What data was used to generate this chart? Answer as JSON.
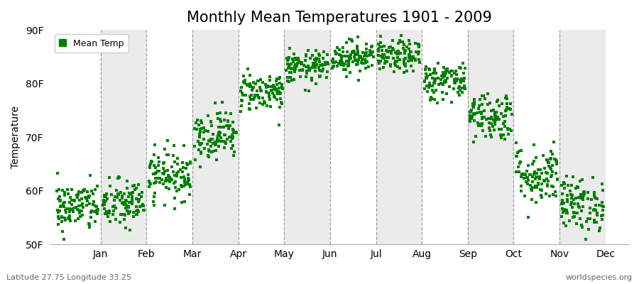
{
  "title": "Monthly Mean Temperatures 1901 - 2009",
  "ylabel": "Temperature",
  "xlabel": "",
  "bottom_left_label": "Latitude 27.75 Longitude 33.25",
  "bottom_right_label": "worldspecies.org",
  "ylim": [
    50,
    90
  ],
  "yticks": [
    50,
    60,
    70,
    80,
    90
  ],
  "ytick_labels": [
    "50F",
    "60F",
    "70F",
    "80F",
    "90F"
  ],
  "month_names": [
    "Jan",
    "Feb",
    "Mar",
    "Apr",
    "May",
    "Jun",
    "Jul",
    "Aug",
    "Sep",
    "Oct",
    "Nov",
    "Dec"
  ],
  "dot_color": "#008000",
  "dot_size": 5,
  "background_color": "#ffffff",
  "plot_bg_colors": [
    "#ffffff",
    "#ebebeb"
  ],
  "legend_label": "Mean Temp",
  "title_fontsize": 15,
  "axis_label_fontsize": 10,
  "tick_fontsize": 10,
  "monthly_mean_temps": [
    57.0,
    57.5,
    63.0,
    70.5,
    78.5,
    83.0,
    85.0,
    85.0,
    80.5,
    74.0,
    63.0,
    57.5
  ],
  "monthly_std_temps": [
    2.3,
    2.3,
    2.3,
    2.3,
    1.8,
    1.5,
    1.5,
    1.5,
    1.8,
    2.3,
    2.8,
    2.5
  ],
  "n_years": 109
}
